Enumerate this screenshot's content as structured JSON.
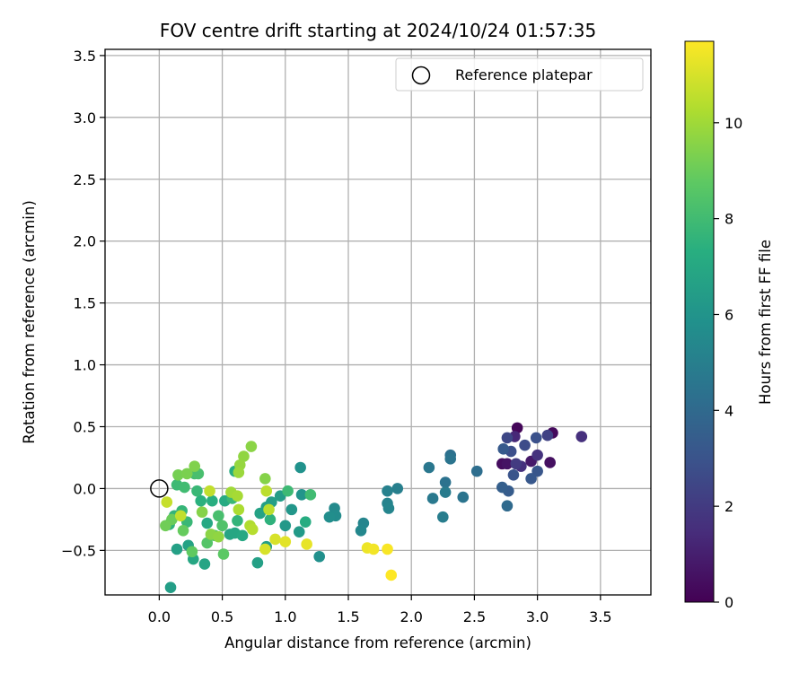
{
  "chart_data": {
    "type": "scatter",
    "title": "FOV centre drift starting at 2024/10/24 01:57:35",
    "xlabel": "Angular distance from reference (arcmin)",
    "ylabel": "Rotation from reference (arcmin)",
    "xlim": [
      -0.43,
      3.9
    ],
    "ylim": [
      -0.86,
      3.55
    ],
    "xticks": [
      0.0,
      0.5,
      1.0,
      1.5,
      2.0,
      2.5,
      3.0,
      3.5
    ],
    "yticks": [
      -0.5,
      0.0,
      0.5,
      1.0,
      1.5,
      2.0,
      2.5,
      3.0,
      3.5
    ],
    "xtick_labels": [
      "0.0",
      "0.5",
      "1.0",
      "1.5",
      "2.0",
      "2.5",
      "3.0",
      "3.5"
    ],
    "ytick_labels": [
      "−0.5",
      "0.0",
      "0.5",
      "1.0",
      "1.5",
      "2.0",
      "2.5",
      "3.0",
      "3.5"
    ],
    "grid": true,
    "legend": {
      "position": "top-right",
      "entries": [
        {
          "label": "Reference platepar",
          "marker": "open-circle",
          "x": 0.0,
          "y": 0.0
        }
      ]
    },
    "colorbar": {
      "label": "Hours from first FF file",
      "colormap": "viridis",
      "range": [
        0,
        11.7
      ],
      "ticks": [
        0,
        2,
        4,
        6,
        8,
        10
      ],
      "tick_labels": [
        "0",
        "2",
        "4",
        "6",
        "8",
        "10"
      ]
    },
    "series": [
      {
        "color_by": "hours",
        "points": [
          {
            "x": 2.84,
            "y": 0.49,
            "h": 0.2
          },
          {
            "x": 3.12,
            "y": 0.45,
            "h": 0.3
          },
          {
            "x": 2.72,
            "y": 0.2,
            "h": 0.4
          },
          {
            "x": 2.76,
            "y": 0.2,
            "h": 0.6
          },
          {
            "x": 2.95,
            "y": 0.22,
            "h": 0.8
          },
          {
            "x": 3.1,
            "y": 0.21,
            "h": 0.5
          },
          {
            "x": 3.35,
            "y": 0.42,
            "h": 1.6
          },
          {
            "x": 2.82,
            "y": 0.42,
            "h": 1.3
          },
          {
            "x": 2.87,
            "y": 0.18,
            "h": 1.6
          },
          {
            "x": 3.0,
            "y": 0.27,
            "h": 1.7
          },
          {
            "x": 2.83,
            "y": 0.2,
            "h": 2.0
          },
          {
            "x": 2.76,
            "y": 0.41,
            "h": 2.5
          },
          {
            "x": 3.08,
            "y": 0.43,
            "h": 2.3
          },
          {
            "x": 2.9,
            "y": 0.35,
            "h": 2.7
          },
          {
            "x": 2.79,
            "y": 0.3,
            "h": 2.8
          },
          {
            "x": 2.99,
            "y": 0.41,
            "h": 2.9
          },
          {
            "x": 2.81,
            "y": 0.11,
            "h": 3.0
          },
          {
            "x": 3.0,
            "y": 0.14,
            "h": 3.1
          },
          {
            "x": 2.95,
            "y": 0.08,
            "h": 3.2
          },
          {
            "x": 2.73,
            "y": 0.32,
            "h": 3.3
          },
          {
            "x": 2.77,
            "y": -0.02,
            "h": 3.4
          },
          {
            "x": 2.72,
            "y": 0.01,
            "h": 3.5
          },
          {
            "x": 2.76,
            "y": -0.14,
            "h": 4.0
          },
          {
            "x": 2.52,
            "y": 0.14,
            "h": 4.2
          },
          {
            "x": 2.31,
            "y": 0.27,
            "h": 4.3
          },
          {
            "x": 2.31,
            "y": 0.24,
            "h": 4.5
          },
          {
            "x": 2.14,
            "y": 0.17,
            "h": 4.6
          },
          {
            "x": 2.27,
            "y": 0.05,
            "h": 4.4
          },
          {
            "x": 2.17,
            "y": -0.08,
            "h": 4.7
          },
          {
            "x": 2.27,
            "y": -0.03,
            "h": 4.8
          },
          {
            "x": 2.41,
            "y": -0.07,
            "h": 4.5
          },
          {
            "x": 2.25,
            "y": -0.23,
            "h": 4.9
          },
          {
            "x": 1.89,
            "y": 0.0,
            "h": 5.0
          },
          {
            "x": 1.81,
            "y": -0.02,
            "h": 5.1
          },
          {
            "x": 1.81,
            "y": -0.12,
            "h": 5.2
          },
          {
            "x": 1.82,
            "y": -0.16,
            "h": 5.3
          },
          {
            "x": 1.62,
            "y": -0.28,
            "h": 5.3
          },
          {
            "x": 1.6,
            "y": -0.34,
            "h": 5.4
          },
          {
            "x": 1.39,
            "y": -0.16,
            "h": 5.5
          },
          {
            "x": 1.4,
            "y": -0.22,
            "h": 5.6
          },
          {
            "x": 1.35,
            "y": -0.23,
            "h": 5.7
          },
          {
            "x": 1.27,
            "y": -0.55,
            "h": 5.8
          },
          {
            "x": 1.12,
            "y": 0.17,
            "h": 5.9
          },
          {
            "x": 1.13,
            "y": -0.05,
            "h": 6.0
          },
          {
            "x": 1.05,
            "y": -0.17,
            "h": 6.1
          },
          {
            "x": 1.0,
            "y": -0.3,
            "h": 6.2
          },
          {
            "x": 1.11,
            "y": -0.35,
            "h": 6.3
          },
          {
            "x": 0.96,
            "y": -0.06,
            "h": 6.4
          },
          {
            "x": 0.89,
            "y": -0.11,
            "h": 6.5
          },
          {
            "x": 0.85,
            "y": -0.15,
            "h": 6.6
          },
          {
            "x": 0.8,
            "y": -0.2,
            "h": 6.7
          },
          {
            "x": 0.85,
            "y": -0.47,
            "h": 6.5
          },
          {
            "x": 0.78,
            "y": -0.6,
            "h": 6.6
          },
          {
            "x": 0.56,
            "y": -0.37,
            "h": 6.8
          },
          {
            "x": 0.6,
            "y": -0.36,
            "h": 6.9
          },
          {
            "x": 0.66,
            "y": -0.38,
            "h": 7.0
          },
          {
            "x": 0.52,
            "y": -0.1,
            "h": 7.1
          },
          {
            "x": 0.6,
            "y": 0.14,
            "h": 7.2
          },
          {
            "x": 0.42,
            "y": -0.1,
            "h": 7.3
          },
          {
            "x": 0.33,
            "y": -0.1,
            "h": 7.4
          },
          {
            "x": 0.38,
            "y": -0.28,
            "h": 7.0
          },
          {
            "x": 0.27,
            "y": -0.57,
            "h": 6.9
          },
          {
            "x": 0.36,
            "y": -0.61,
            "h": 6.8
          },
          {
            "x": 0.23,
            "y": -0.46,
            "h": 6.7
          },
          {
            "x": 0.14,
            "y": -0.49,
            "h": 6.6
          },
          {
            "x": 0.09,
            "y": -0.8,
            "h": 6.5
          },
          {
            "x": 0.08,
            "y": -0.29,
            "h": 7.5
          },
          {
            "x": 0.12,
            "y": -0.22,
            "h": 7.6
          },
          {
            "x": 0.18,
            "y": -0.18,
            "h": 7.7
          },
          {
            "x": 0.22,
            "y": -0.27,
            "h": 7.8
          },
          {
            "x": 0.14,
            "y": 0.03,
            "h": 7.9
          },
          {
            "x": 0.2,
            "y": 0.01,
            "h": 8.0
          },
          {
            "x": 0.28,
            "y": 0.12,
            "h": 8.1
          },
          {
            "x": 0.31,
            "y": 0.12,
            "h": 8.2
          },
          {
            "x": 0.3,
            "y": -0.02,
            "h": 7.8
          },
          {
            "x": 1.02,
            "y": -0.02,
            "h": 7.9
          },
          {
            "x": 1.16,
            "y": -0.27,
            "h": 7.2
          },
          {
            "x": 1.2,
            "y": -0.05,
            "h": 8.0
          },
          {
            "x": 0.88,
            "y": -0.25,
            "h": 7.5
          },
          {
            "x": 0.62,
            "y": -0.26,
            "h": 7.6
          },
          {
            "x": 0.58,
            "y": -0.08,
            "h": 7.8
          },
          {
            "x": 0.47,
            "y": -0.22,
            "h": 8.2
          },
          {
            "x": 0.5,
            "y": -0.3,
            "h": 8.4
          },
          {
            "x": 0.44,
            "y": -0.38,
            "h": 8.6
          },
          {
            "x": 0.38,
            "y": -0.44,
            "h": 8.5
          },
          {
            "x": 0.51,
            "y": -0.53,
            "h": 8.7
          },
          {
            "x": 0.26,
            "y": -0.51,
            "h": 8.8
          },
          {
            "x": 0.19,
            "y": -0.34,
            "h": 8.9
          },
          {
            "x": 0.1,
            "y": -0.25,
            "h": 9.0
          },
          {
            "x": 0.05,
            "y": -0.3,
            "h": 9.1
          },
          {
            "x": 0.15,
            "y": 0.11,
            "h": 9.2
          },
          {
            "x": 0.22,
            "y": 0.12,
            "h": 9.3
          },
          {
            "x": 0.28,
            "y": 0.18,
            "h": 9.4
          },
          {
            "x": 0.34,
            "y": -0.19,
            "h": 9.5
          },
          {
            "x": 0.41,
            "y": -0.37,
            "h": 9.6
          },
          {
            "x": 0.47,
            "y": -0.39,
            "h": 9.7
          },
          {
            "x": 0.84,
            "y": 0.08,
            "h": 9.5
          },
          {
            "x": 0.73,
            "y": 0.34,
            "h": 9.6
          },
          {
            "x": 0.67,
            "y": 0.26,
            "h": 9.7
          },
          {
            "x": 0.64,
            "y": 0.19,
            "h": 9.8
          },
          {
            "x": 0.63,
            "y": 0.13,
            "h": 9.9
          },
          {
            "x": 0.57,
            "y": -0.03,
            "h": 10.0
          },
          {
            "x": 0.62,
            "y": -0.06,
            "h": 10.1
          },
          {
            "x": 0.63,
            "y": -0.17,
            "h": 10.2
          },
          {
            "x": 0.72,
            "y": -0.3,
            "h": 10.3
          },
          {
            "x": 0.74,
            "y": -0.33,
            "h": 10.4
          },
          {
            "x": 0.85,
            "y": -0.02,
            "h": 10.5
          },
          {
            "x": 0.87,
            "y": -0.17,
            "h": 10.5
          },
          {
            "x": 0.4,
            "y": -0.02,
            "h": 10.6
          },
          {
            "x": 0.06,
            "y": -0.11,
            "h": 10.7
          },
          {
            "x": 0.17,
            "y": -0.22,
            "h": 10.6
          },
          {
            "x": 0.92,
            "y": -0.41,
            "h": 11.0
          },
          {
            "x": 1.0,
            "y": -0.43,
            "h": 11.2
          },
          {
            "x": 1.17,
            "y": -0.45,
            "h": 11.3
          },
          {
            "x": 0.84,
            "y": -0.49,
            "h": 11.0
          },
          {
            "x": 1.65,
            "y": -0.48,
            "h": 11.4
          },
          {
            "x": 1.7,
            "y": -0.49,
            "h": 11.5
          },
          {
            "x": 1.81,
            "y": -0.49,
            "h": 11.6
          },
          {
            "x": 1.84,
            "y": -0.7,
            "h": 11.7
          }
        ]
      }
    ]
  }
}
